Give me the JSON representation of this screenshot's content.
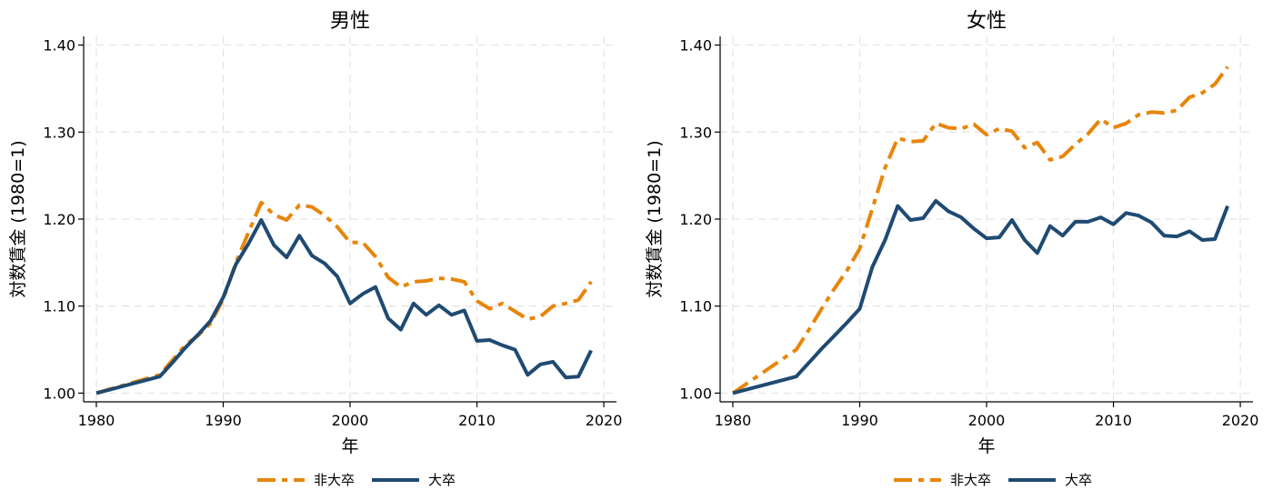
{
  "chart_data": [
    {
      "type": "line",
      "title": "男性",
      "xlabel": "年",
      "ylabel": "対数賃金 (1980=1)",
      "xlim": [
        1979,
        2021
      ],
      "ylim": [
        0.99,
        1.41
      ],
      "xticks": [
        1980,
        1990,
        2000,
        2010,
        2020
      ],
      "yticks": [
        1.0,
        1.1,
        1.2,
        1.3,
        1.4
      ],
      "ytick_labels": [
        "1.00",
        "1.10",
        "1.20",
        "1.30",
        "1.40"
      ],
      "grid": true,
      "legend": "bottom",
      "series": [
        {
          "name": "非大卒",
          "color": "#E8850A",
          "style": "dash",
          "x": [
            1980,
            1985,
            1986,
            1987,
            1988,
            1989,
            1990,
            1991,
            1992,
            1993,
            1994,
            1995,
            1996,
            1997,
            1998,
            1999,
            2000,
            2001,
            2002,
            2003,
            2004,
            2005,
            2006,
            2007,
            2008,
            2009,
            2010,
            2011,
            2012,
            2013,
            2014,
            2015,
            2016,
            2017,
            2018,
            2019
          ],
          "y": [
            1.0,
            1.021,
            1.038,
            1.055,
            1.066,
            1.08,
            1.108,
            1.15,
            1.185,
            1.219,
            1.205,
            1.199,
            1.216,
            1.214,
            1.204,
            1.191,
            1.173,
            1.173,
            1.157,
            1.133,
            1.122,
            1.128,
            1.129,
            1.132,
            1.131,
            1.128,
            1.106,
            1.097,
            1.103,
            1.094,
            1.085,
            1.088,
            1.1,
            1.103,
            1.107,
            1.128
          ]
        },
        {
          "name": "大卒",
          "color": "#1F4A72",
          "style": "solid",
          "x": [
            1980,
            1985,
            1986,
            1987,
            1988,
            1989,
            1990,
            1991,
            1992,
            1993,
            1994,
            1995,
            1996,
            1997,
            1998,
            1999,
            2000,
            2001,
            2002,
            2003,
            2004,
            2005,
            2006,
            2007,
            2008,
            2009,
            2010,
            2011,
            2012,
            2013,
            2014,
            2015,
            2016,
            2017,
            2018,
            2019
          ],
          "y": [
            1.0,
            1.019,
            1.035,
            1.052,
            1.067,
            1.083,
            1.11,
            1.148,
            1.172,
            1.199,
            1.17,
            1.156,
            1.181,
            1.158,
            1.149,
            1.134,
            1.103,
            1.114,
            1.122,
            1.086,
            1.073,
            1.103,
            1.09,
            1.101,
            1.09,
            1.095,
            1.06,
            1.061,
            1.055,
            1.05,
            1.021,
            1.033,
            1.036,
            1.018,
            1.019,
            1.049
          ]
        }
      ]
    },
    {
      "type": "line",
      "title": "女性",
      "xlabel": "年",
      "ylabel": "対数賃金 (1980=1)",
      "xlim": [
        1979,
        2021
      ],
      "ylim": [
        0.99,
        1.41
      ],
      "xticks": [
        1980,
        1990,
        2000,
        2010,
        2020
      ],
      "yticks": [
        1.0,
        1.1,
        1.2,
        1.3,
        1.4
      ],
      "ytick_labels": [
        "1.00",
        "1.10",
        "1.20",
        "1.30",
        "1.40"
      ],
      "grid": true,
      "legend": "bottom",
      "series": [
        {
          "name": "非大卒",
          "color": "#E8850A",
          "style": "dash",
          "x": [
            1980,
            1985,
            1986,
            1987,
            1988,
            1989,
            1990,
            1991,
            1992,
            1993,
            1994,
            1995,
            1996,
            1997,
            1998,
            1999,
            2000,
            2001,
            2002,
            2003,
            2004,
            2005,
            2006,
            2007,
            2008,
            2009,
            2010,
            2011,
            2012,
            2013,
            2014,
            2015,
            2016,
            2017,
            2018,
            2019
          ],
          "y": [
            1.0,
            1.05,
            1.073,
            1.097,
            1.12,
            1.141,
            1.166,
            1.212,
            1.259,
            1.293,
            1.289,
            1.29,
            1.31,
            1.305,
            1.304,
            1.309,
            1.297,
            1.304,
            1.301,
            1.282,
            1.288,
            1.268,
            1.272,
            1.286,
            1.298,
            1.315,
            1.305,
            1.31,
            1.32,
            1.323,
            1.322,
            1.325,
            1.34,
            1.345,
            1.355,
            1.375
          ]
        },
        {
          "name": "大卒",
          "color": "#1F4A72",
          "style": "solid",
          "x": [
            1980,
            1985,
            1986,
            1987,
            1988,
            1989,
            1990,
            1991,
            1992,
            1993,
            1994,
            1995,
            1996,
            1997,
            1998,
            1999,
            2000,
            2001,
            2002,
            2003,
            2004,
            2005,
            2006,
            2007,
            2008,
            2009,
            2010,
            2011,
            2012,
            2013,
            2014,
            2015,
            2016,
            2017,
            2018,
            2019
          ],
          "y": [
            1.0,
            1.019,
            1.035,
            1.051,
            1.066,
            1.081,
            1.097,
            1.145,
            1.176,
            1.215,
            1.199,
            1.201,
            1.221,
            1.209,
            1.202,
            1.189,
            1.178,
            1.179,
            1.199,
            1.176,
            1.161,
            1.192,
            1.181,
            1.197,
            1.197,
            1.202,
            1.194,
            1.207,
            1.204,
            1.196,
            1.181,
            1.18,
            1.186,
            1.176,
            1.177,
            1.215
          ]
        }
      ]
    }
  ]
}
